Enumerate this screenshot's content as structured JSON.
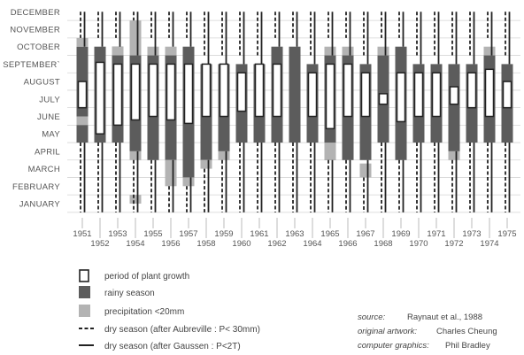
{
  "chart_data": {
    "type": "timeline",
    "months": [
      "JANUARY",
      "FEBRUARY",
      "MARCH",
      "APRIL",
      "MAY",
      "JUNE",
      "JULY",
      "AUGUST",
      "SEPTEMBER`",
      "OCTOBER",
      "NOVEMBER",
      "DECEMBER"
    ],
    "years": [
      1951,
      1952,
      1953,
      1954,
      1955,
      1956,
      1957,
      1958,
      1959,
      1960,
      1961,
      1962,
      1963,
      1964,
      1965,
      1966,
      1967,
      1968,
      1969,
      1970,
      1971,
      1972,
      1973,
      1974,
      1975
    ],
    "year_labels": [
      "1951",
      "1952",
      "1953",
      "1954",
      "1955",
      "1956",
      "1957",
      "1958",
      "1959",
      "1960",
      "1961",
      "1962",
      "1963",
      "1964",
      "1965",
      "1966",
      "1967",
      "1968",
      "1969",
      "1970",
      "1971",
      "1972",
      "1973",
      "1974",
      "1975"
    ],
    "month_units": "month index 1=January, values are fractional month positions",
    "series": [
      {
        "year": 1951,
        "rainy": [
          5,
          10.5
        ],
        "precip": [
          [
            6,
            6.5
          ],
          [
            10.5,
            11
          ]
        ],
        "growth": [
          7,
          8.5
        ],
        "dry_aubreville": [
          [
            1,
            5
          ],
          [
            11,
            12.5
          ]
        ],
        "dry_gaussen": [
          [
            1,
            5
          ],
          [
            10.5,
            12.5
          ]
        ]
      },
      {
        "year": 1952,
        "rainy": [
          5,
          10.5
        ],
        "precip": [],
        "growth": [
          5.5,
          9.6
        ],
        "dry_aubreville": [
          [
            1,
            5
          ],
          [
            11,
            12.5
          ]
        ],
        "dry_gaussen": [
          [
            1,
            5
          ],
          [
            10.5,
            12.5
          ]
        ]
      },
      {
        "year": 1953,
        "rainy": [
          5,
          10.5
        ],
        "precip": [
          [
            10,
            10.5
          ]
        ],
        "growth": [
          6,
          9.5
        ],
        "dry_aubreville": [
          [
            1,
            5
          ],
          [
            11,
            12.5
          ]
        ],
        "dry_gaussen": [
          [
            1,
            5
          ],
          [
            10.5,
            12.5
          ]
        ]
      },
      {
        "year": 1954,
        "rainy": [
          4.5,
          10
        ],
        "precip": [
          [
            1.5,
            2
          ],
          [
            4,
            4.5
          ],
          [
            10,
            12
          ]
        ],
        "growth": [
          6.3,
          9.5
        ],
        "dry_aubreville": [
          [
            1,
            4
          ],
          [
            12,
            12.5
          ]
        ],
        "dry_gaussen": [
          [
            1,
            4.5
          ],
          [
            10,
            12.5
          ]
        ]
      },
      {
        "year": 1955,
        "rainy": [
          4,
          10
        ],
        "precip": [
          [
            10,
            10.5
          ]
        ],
        "growth": [
          6.5,
          9.5
        ],
        "dry_aubreville": [
          [
            1,
            4
          ],
          [
            11,
            12.5
          ]
        ],
        "dry_gaussen": [
          [
            1,
            4
          ],
          [
            10,
            12.5
          ]
        ]
      },
      {
        "year": 1956,
        "rainy": [
          4,
          10
        ],
        "precip": [
          [
            2.5,
            4
          ],
          [
            10,
            10.5
          ]
        ],
        "growth": [
          6.3,
          9.5
        ],
        "dry_aubreville": [
          [
            1,
            2.5
          ],
          [
            11,
            12.5
          ]
        ],
        "dry_gaussen": [
          [
            1,
            4
          ],
          [
            10.5,
            12.5
          ]
        ]
      },
      {
        "year": 1957,
        "rainy": [
          3,
          10.5
        ],
        "precip": [
          [
            2.5,
            3
          ]
        ],
        "growth": [
          6.1,
          9.5
        ],
        "dry_aubreville": [
          [
            1,
            2.5
          ],
          [
            11,
            12.5
          ]
        ],
        "dry_gaussen": [
          [
            1,
            3
          ],
          [
            10.5,
            12.5
          ]
        ]
      },
      {
        "year": 1958,
        "rainy": [
          4,
          9.5
        ],
        "precip": [
          [
            3.5,
            4
          ]
        ],
        "growth": [
          6.5,
          9.5
        ],
        "dry_aubreville": [
          [
            1,
            3.5
          ],
          [
            10,
            12.5
          ]
        ],
        "dry_gaussen": [
          [
            1,
            4
          ],
          [
            9.5,
            12.5
          ]
        ]
      },
      {
        "year": 1959,
        "rainy": [
          4.5,
          9.5
        ],
        "precip": [
          [
            4,
            4.5
          ]
        ],
        "growth": [
          6.5,
          9.5
        ],
        "dry_aubreville": [
          [
            1,
            4
          ],
          [
            10,
            12.5
          ]
        ],
        "dry_gaussen": [
          [
            1,
            4.5
          ],
          [
            9.5,
            12.5
          ]
        ]
      },
      {
        "year": 1960,
        "rainy": [
          5,
          9.5
        ],
        "precip": [],
        "growth": [
          6.8,
          9
        ],
        "dry_aubreville": [
          [
            1,
            5
          ],
          [
            10,
            12.5
          ]
        ],
        "dry_gaussen": [
          [
            1,
            5
          ],
          [
            9.5,
            12.5
          ]
        ]
      },
      {
        "year": 1961,
        "rainy": [
          5,
          9.5
        ],
        "precip": [],
        "growth": [
          6.5,
          9.5
        ],
        "dry_aubreville": [
          [
            1,
            5
          ],
          [
            10,
            12.5
          ]
        ],
        "dry_gaussen": [
          [
            1,
            5
          ],
          [
            9.5,
            12.5
          ]
        ]
      },
      {
        "year": 1962,
        "rainy": [
          5,
          10.5
        ],
        "precip": [],
        "growth": [
          6.5,
          9.5
        ],
        "dry_aubreville": [
          [
            1,
            5
          ],
          [
            11,
            12.5
          ]
        ],
        "dry_gaussen": [
          [
            1,
            5
          ],
          [
            10.5,
            12.5
          ]
        ]
      },
      {
        "year": 1963,
        "rainy": [
          5,
          10.5
        ],
        "precip": [],
        "growth": [],
        "dry_aubreville": [
          [
            1,
            5
          ],
          [
            11,
            12.5
          ]
        ],
        "dry_gaussen": [
          [
            1,
            5
          ],
          [
            10.5,
            12.5
          ]
        ]
      },
      {
        "year": 1964,
        "rainy": [
          5,
          9.5
        ],
        "precip": [],
        "growth": [
          6.5,
          9
        ],
        "dry_aubreville": [
          [
            1,
            5
          ],
          [
            10,
            12.5
          ]
        ],
        "dry_gaussen": [
          [
            1,
            5
          ],
          [
            9.5,
            12.5
          ]
        ]
      },
      {
        "year": 1965,
        "rainy": [
          4,
          10
        ],
        "precip": [
          [
            4,
            5
          ],
          [
            10,
            10.5
          ]
        ],
        "growth": [
          5.8,
          9.5
        ],
        "dry_aubreville": [
          [
            1,
            4
          ],
          [
            11,
            12.5
          ]
        ],
        "dry_gaussen": [
          [
            1,
            4
          ],
          [
            10,
            12.5
          ]
        ]
      },
      {
        "year": 1966,
        "rainy": [
          4,
          10
        ],
        "precip": [
          [
            10,
            10.5
          ]
        ],
        "growth": [
          6.5,
          9.5
        ],
        "dry_aubreville": [
          [
            1,
            4
          ],
          [
            11,
            12.5
          ]
        ],
        "dry_gaussen": [
          [
            1,
            4
          ],
          [
            10,
            12.5
          ]
        ]
      },
      {
        "year": 1967,
        "rainy": [
          4,
          9.5
        ],
        "precip": [
          [
            3,
            3.8
          ]
        ],
        "growth": [
          6.5,
          9
        ],
        "dry_aubreville": [
          [
            1,
            3
          ],
          [
            10,
            12.5
          ]
        ],
        "dry_gaussen": [
          [
            1,
            4
          ],
          [
            9.5,
            12.5
          ]
        ]
      },
      {
        "year": 1968,
        "rainy": [
          5,
          10
        ],
        "precip": [
          [
            10,
            10.5
          ]
        ],
        "growth": [
          7.2,
          7.8
        ],
        "dry_aubreville": [
          [
            1,
            5
          ],
          [
            11,
            12.5
          ]
        ],
        "dry_gaussen": [
          [
            1,
            5
          ],
          [
            10,
            12.5
          ]
        ]
      },
      {
        "year": 1969,
        "rainy": [
          4,
          10.5
        ],
        "precip": [],
        "growth": [
          6.2,
          9
        ],
        "dry_aubreville": [
          [
            1,
            4
          ],
          [
            11,
            12.5
          ]
        ],
        "dry_gaussen": [
          [
            1,
            4
          ],
          [
            10.5,
            12.5
          ]
        ]
      },
      {
        "year": 1970,
        "rainy": [
          5,
          9.5
        ],
        "precip": [],
        "growth": [
          6.5,
          9
        ],
        "dry_aubreville": [
          [
            1,
            5
          ],
          [
            10,
            12.5
          ]
        ],
        "dry_gaussen": [
          [
            1,
            5
          ],
          [
            9.5,
            12.5
          ]
        ]
      },
      {
        "year": 1971,
        "rainy": [
          5,
          9.5
        ],
        "precip": [],
        "growth": [
          6.5,
          9
        ],
        "dry_aubreville": [
          [
            1,
            5
          ],
          [
            10,
            12.5
          ]
        ],
        "dry_gaussen": [
          [
            1,
            5
          ],
          [
            9.5,
            12.5
          ]
        ]
      },
      {
        "year": 1972,
        "rainy": [
          4.5,
          9.5
        ],
        "precip": [
          [
            4,
            4.5
          ]
        ],
        "growth": [
          7.2,
          8.2
        ],
        "dry_aubreville": [
          [
            1,
            4
          ],
          [
            10,
            12.5
          ]
        ],
        "dry_gaussen": [
          [
            1,
            4.5
          ],
          [
            9.5,
            12.5
          ]
        ]
      },
      {
        "year": 1973,
        "rainy": [
          5,
          9.5
        ],
        "precip": [],
        "growth": [
          7,
          9
        ],
        "dry_aubreville": [
          [
            1,
            5
          ],
          [
            10,
            12.5
          ]
        ],
        "dry_gaussen": [
          [
            1,
            5
          ],
          [
            9.5,
            12.5
          ]
        ]
      },
      {
        "year": 1974,
        "rainy": [
          5,
          10
        ],
        "precip": [
          [
            10,
            10.5
          ]
        ],
        "growth": [
          6.5,
          9.2
        ],
        "dry_aubreville": [
          [
            1,
            5
          ],
          [
            11,
            12.5
          ]
        ],
        "dry_gaussen": [
          [
            1,
            5
          ],
          [
            10,
            12.5
          ]
        ]
      },
      {
        "year": 1975,
        "rainy": [
          5,
          9.5
        ],
        "precip": [],
        "growth": [
          7,
          8.5
        ],
        "dry_aubreville": [
          [
            1,
            5
          ],
          [
            10,
            12.5
          ]
        ],
        "dry_gaussen": [
          [
            1,
            5
          ],
          [
            9.5,
            12.5
          ]
        ]
      }
    ],
    "colors": {
      "rainy": "#5c5c5c",
      "precip": "#b3b3b3",
      "growth_fill": "#ffffff",
      "line": "#222222",
      "grid": "#d6d6d6"
    },
    "grid": true
  },
  "legend": {
    "growth": "period of plant growth",
    "rainy": "rainy season",
    "precip": "precipitation <20mm",
    "aubreville": "dry season (after Aubreville : P< 30mm)",
    "gaussen": "dry season (after Gaussen : P<2T)"
  },
  "credits": {
    "source_label": "source:",
    "source_value": "Raynaut et al., 1988",
    "artwork_label": "original artwork:",
    "artwork_value": "Charles Cheung",
    "graphics_label": "computer graphics:",
    "graphics_value": "Phil Bradley"
  }
}
